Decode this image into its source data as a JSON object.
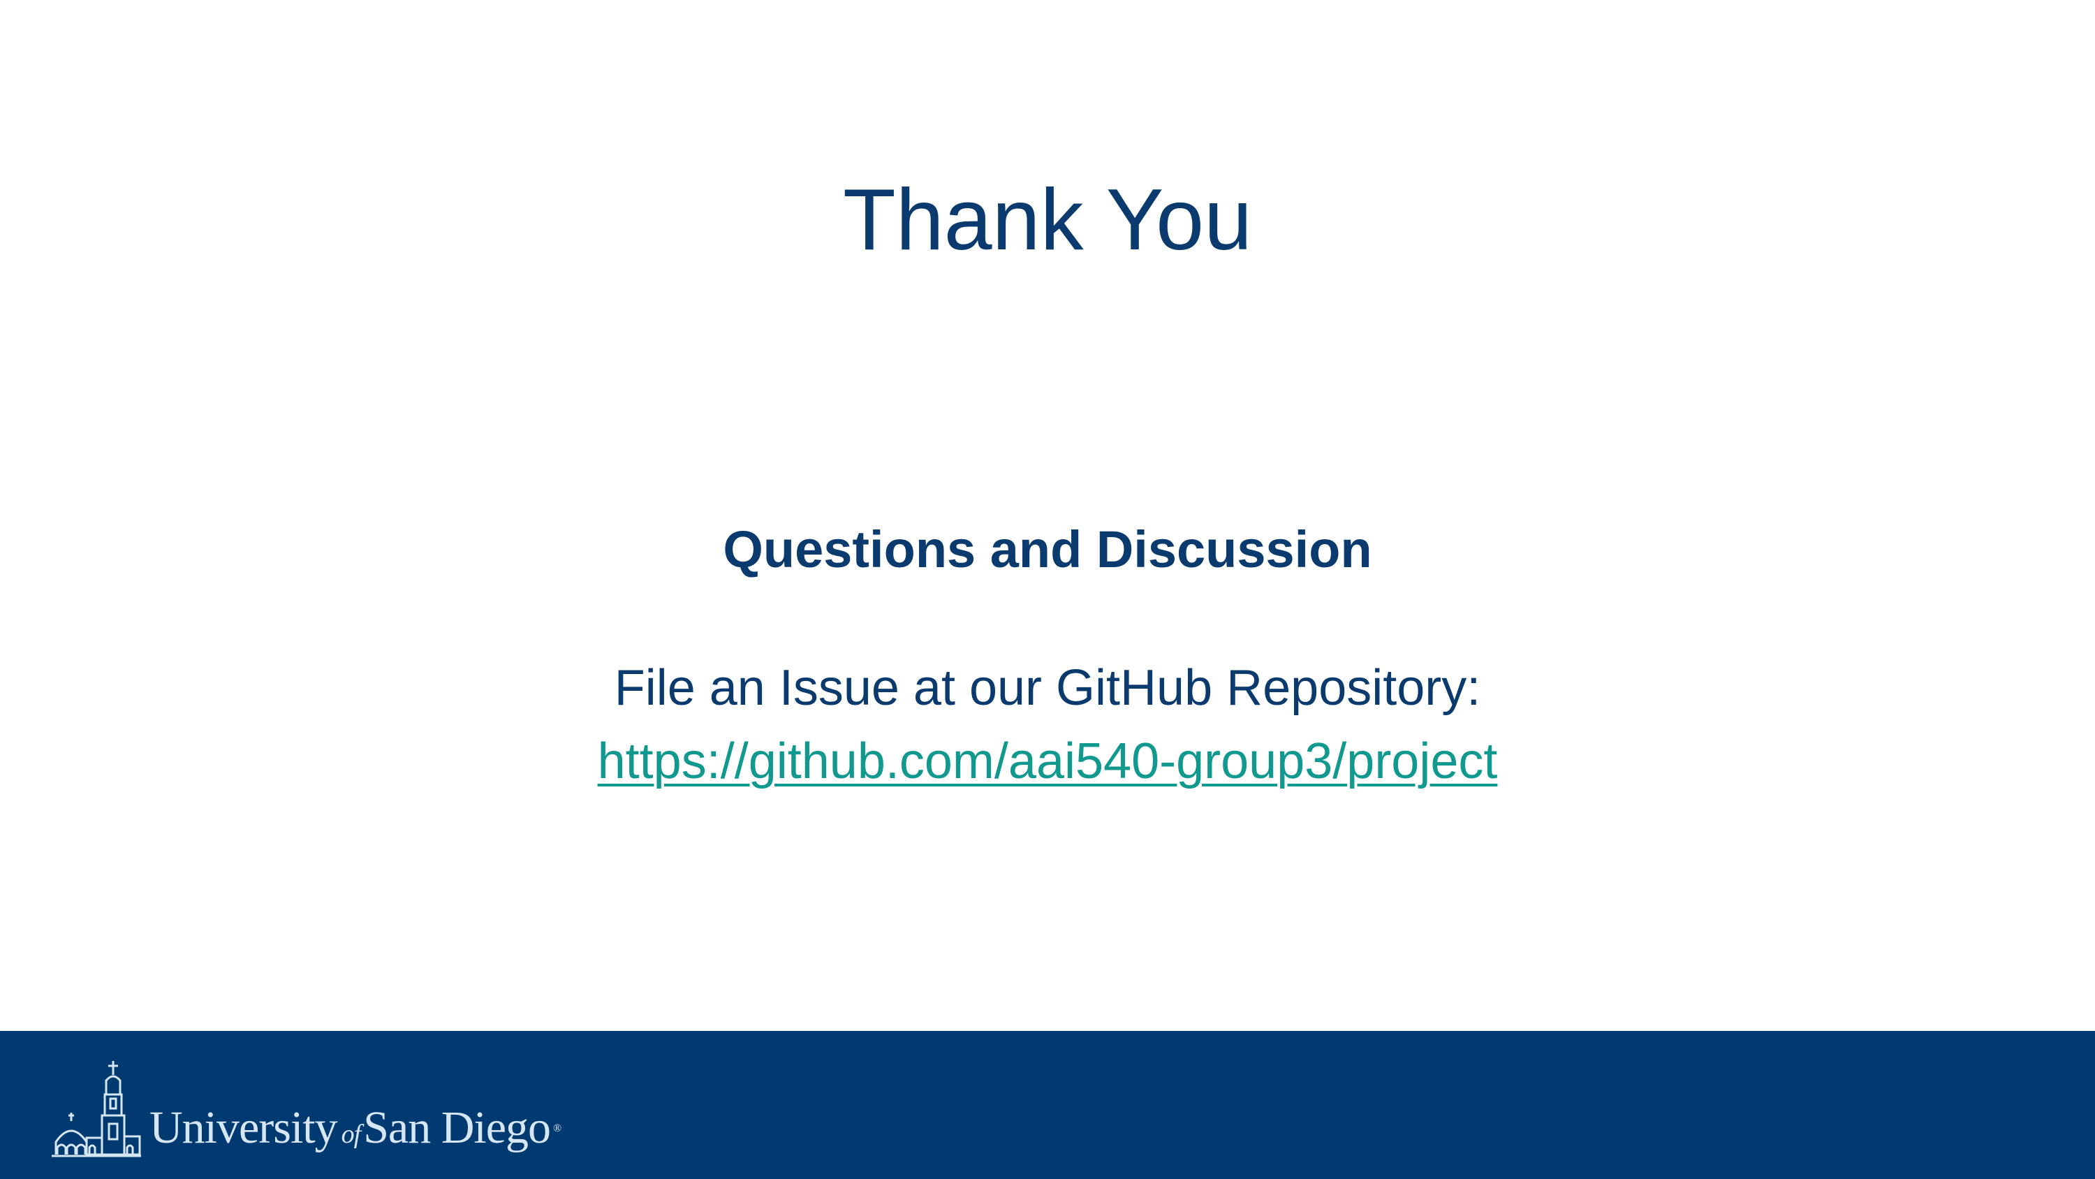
{
  "slide": {
    "title": "Thank You",
    "subtitle": "Questions and Discussion",
    "issue_text": "File an Issue at our GitHub Repository:",
    "repo_link": "https://github.com/aai540-group3/project"
  },
  "footer": {
    "logo": {
      "word1": "University",
      "word2": "of",
      "word3": "San Diego",
      "mark": "®"
    }
  },
  "colors": {
    "title": "#0b3b6e",
    "link": "#12998f",
    "footer_bg": "#003a70",
    "logo": "#d7e6f3"
  }
}
